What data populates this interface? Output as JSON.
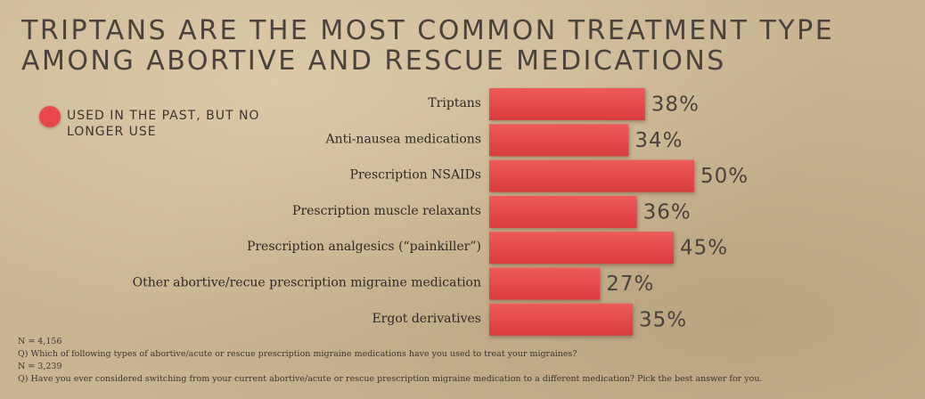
{
  "title_lines": [
    "TRIPTANS ARE THE MOST COMMON TREATMENT TYPE",
    "AMONG ABORTIVE AND RESCUE MEDICATIONS"
  ],
  "colors": {
    "bar": "#e8484b",
    "bar_dark": "#cf3436"
  },
  "chart_data": {
    "type": "bar",
    "orientation": "horizontal",
    "title": "TRIPTANS ARE THE MOST COMMON TREATMENT TYPE AMONG ABORTIVE AND RESCUE MEDICATIONS",
    "categories": [
      "Triptans",
      "Anti-nausea medications",
      "Prescription NSAIDs",
      "Prescription muscle relaxants",
      "Prescription analgesics (“painkiller”)",
      "Other abortive/recue prescription migraine medication",
      "Ergot derivatives"
    ],
    "series": [
      {
        "name": "USED IN THE PAST, BUT NO LONGER USE",
        "values": [
          38,
          34,
          50,
          36,
          45,
          27,
          35
        ]
      }
    ],
    "value_labels": [
      "38%",
      "34%",
      "50%",
      "36%",
      "45%",
      "27%",
      "35%"
    ],
    "unit": "%",
    "xlim": [
      0,
      50
    ],
    "grid": false,
    "legend": {
      "position": "top-left",
      "entries": [
        "USED IN THE PAST, BUT NO LONGER USE"
      ]
    }
  },
  "notes": [
    "N = 4,156",
    "Q) Which of following types of abortive/acute or rescue prescription migraine medications have you used to treat your migraines?",
    "N = 3,239",
    "Q) Have you ever considered switching from your current abortive/acute or rescue prescription migraine medication to a different medication? Pick the best answer for you."
  ]
}
